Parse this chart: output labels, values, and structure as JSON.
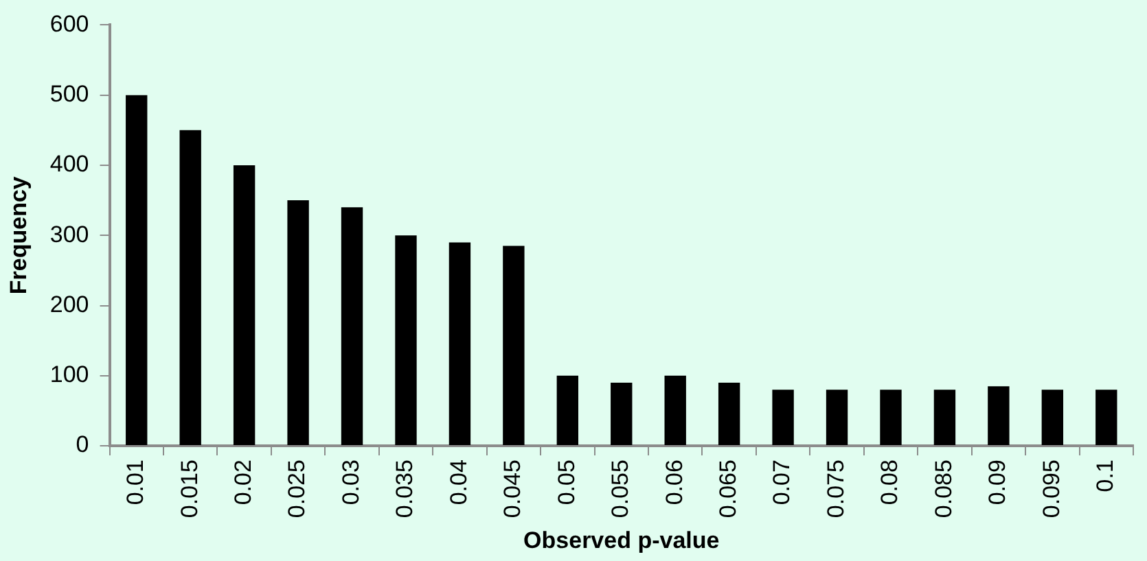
{
  "chart_data": {
    "type": "bar",
    "xlabel": "Observed p-value",
    "ylabel": "Frequency",
    "categories": [
      "0.01",
      "0.015",
      "0.02",
      "0.025",
      "0.03",
      "0.035",
      "0.04",
      "0.045",
      "0.05",
      "0.055",
      "0.06",
      "0.065",
      "0.07",
      "0.075",
      "0.08",
      "0.085",
      "0.09",
      "0.095",
      "0.1"
    ],
    "values": [
      500,
      450,
      400,
      350,
      340,
      300,
      290,
      285,
      100,
      90,
      100,
      90,
      80,
      80,
      80,
      80,
      85,
      80,
      80
    ],
    "color": "#000000",
    "ylim": [
      0,
      600
    ],
    "yticks": [
      0,
      100,
      200,
      300,
      400,
      500,
      600
    ],
    "grid": false,
    "legend": false
  }
}
